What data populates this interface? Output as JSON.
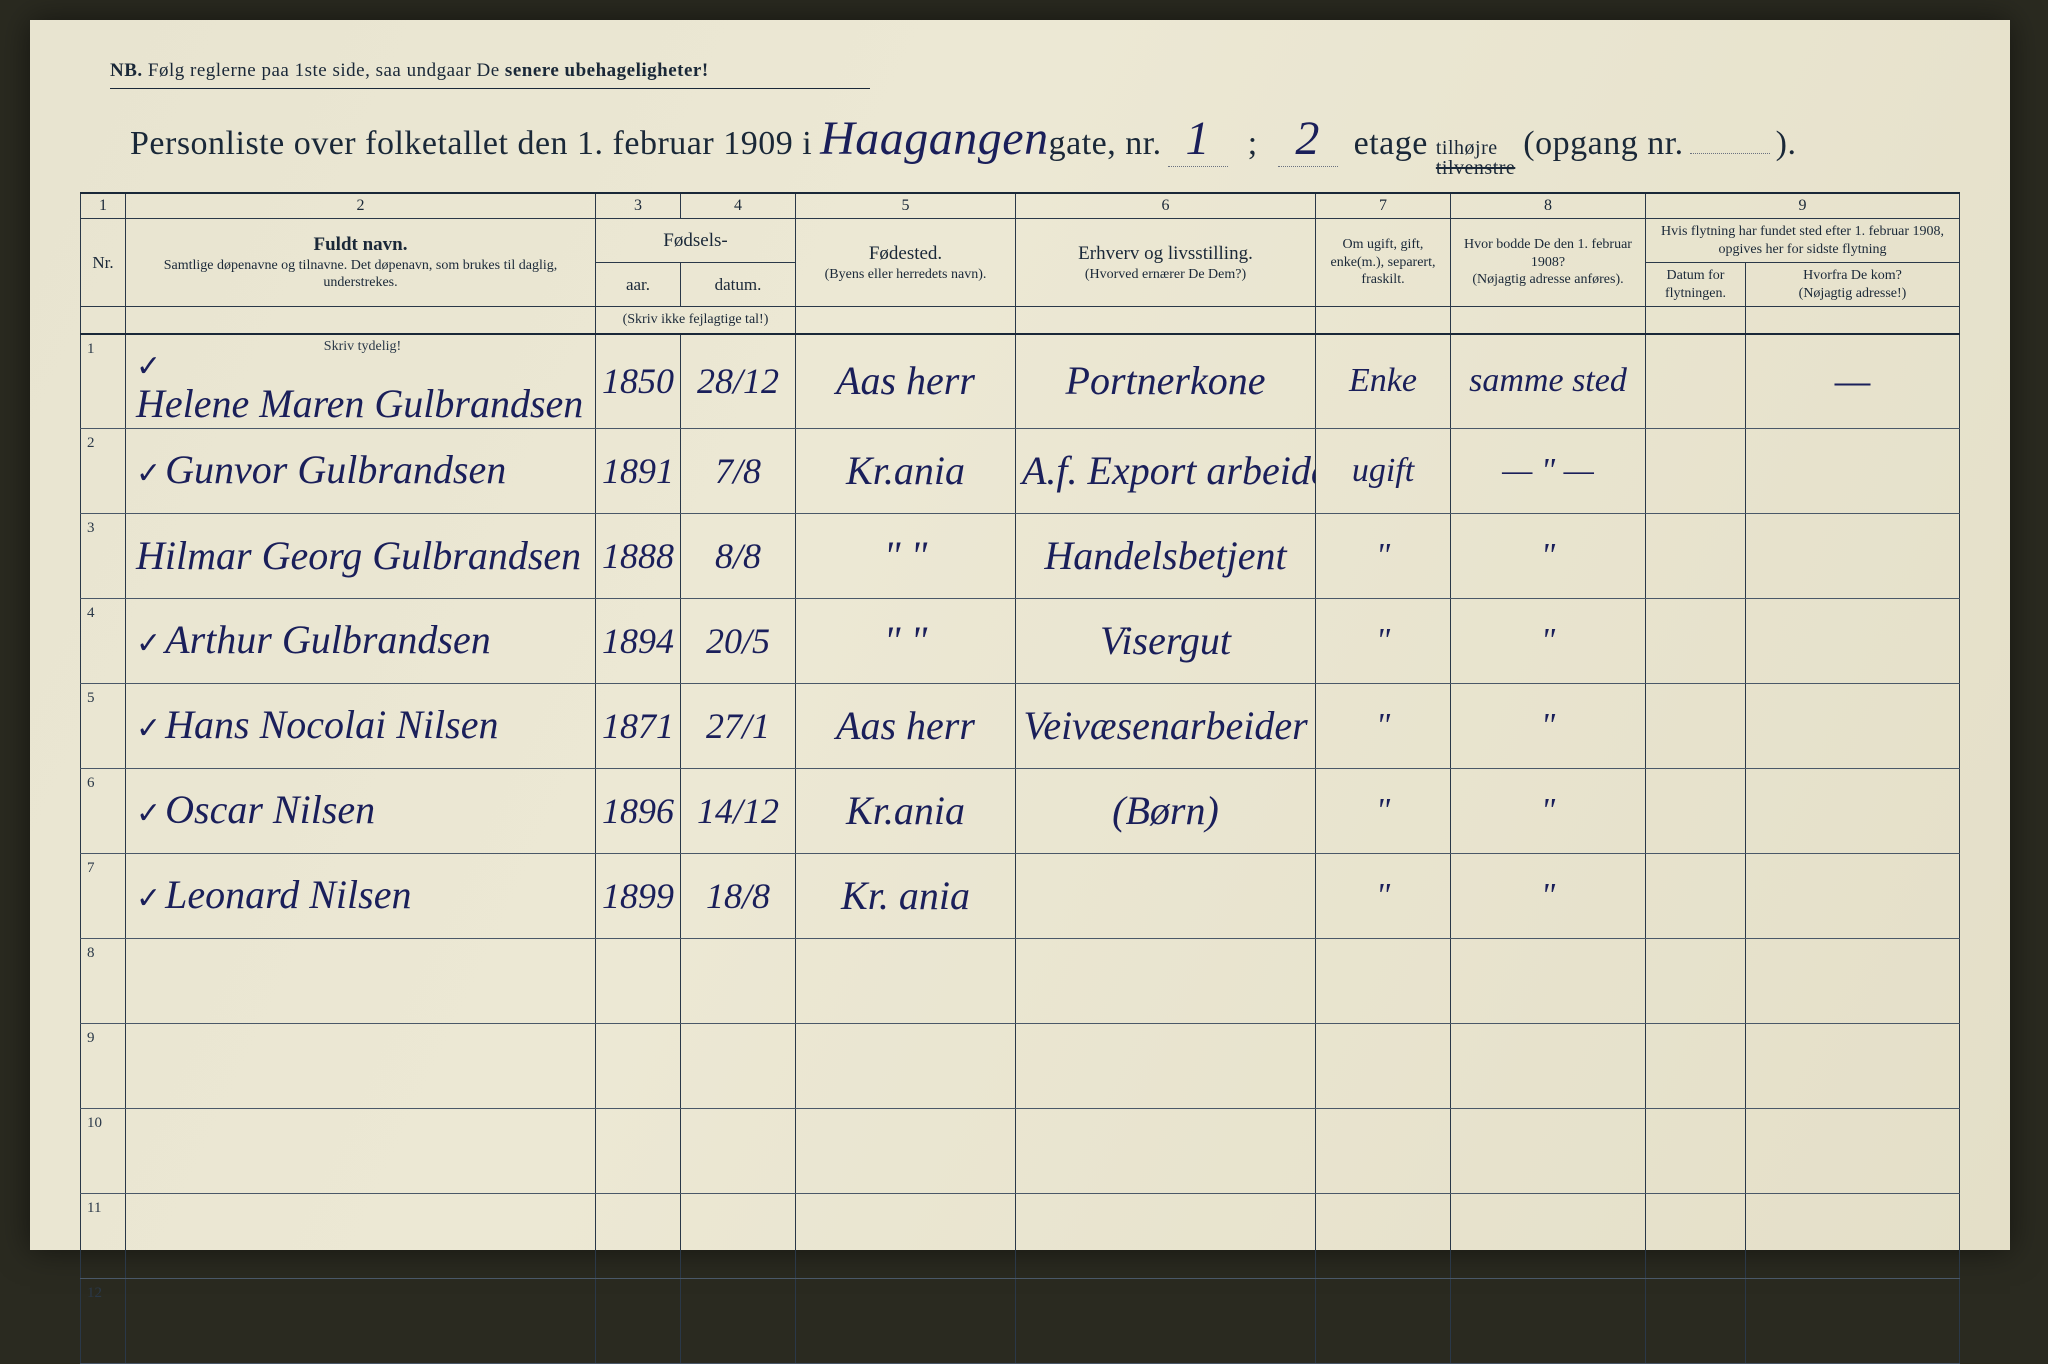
{
  "colors": {
    "paper": "#e8e4d0",
    "ink_print": "#1a2838",
    "ink_hand": "#1a1f5a",
    "rule": "#2a3848"
  },
  "nb": {
    "prefix": "NB.",
    "text_a": "Følg reglerne paa 1ste side, saa undgaar De",
    "text_b": "senere ubehageligheter!"
  },
  "title": {
    "lead": "Personliste over folketallet den 1. februar 1909 i",
    "street_hand": "Haagangen",
    "gate_label": "gate, nr.",
    "gate_nr": "1",
    "semicolon": ";",
    "etage_nr": "2",
    "etage_label": "etage",
    "tilhojre": "tilhøjre",
    "tilvenstre": "tilvenstre",
    "opgang": "(opgang nr.",
    "opgang_nr": "",
    "close": ")."
  },
  "colnums": [
    "1",
    "2",
    "3",
    "4",
    "5",
    "6",
    "7",
    "8",
    "9"
  ],
  "headers": {
    "nr": "Nr.",
    "fuldt_navn": "Fuldt navn.",
    "fuldt_sub": "Samtlige døpenavne og tilnavne. Det døpenavn, som brukes til daglig, understrekes.",
    "fodsels": "Fødsels-",
    "aar": "aar.",
    "datum": "datum.",
    "skriv_feil": "(Skriv ikke fejlagtige tal!)",
    "fodested": "Fødested.",
    "fodested_sub": "(Byens eller herredets navn).",
    "erhverv": "Erhverv og livsstilling.",
    "erhverv_sub": "(Hvorved ernærer De Dem?)",
    "ugift": "Om ugift, gift, enke(m.), separert, fraskilt.",
    "hvor1908": "Hvor bodde De den 1. februar 1908?",
    "hvor1908_sub": "(Nøjagtig adresse anføres).",
    "flytning": "Hvis flytning har fundet sted efter 1. februar 1908, opgives her for sidste flytning",
    "datum_flyt": "Datum for flytningen.",
    "hvorfra": "Hvorfra De kom?",
    "hvorfra_sub": "(Nøjagtig adresse!)",
    "skriv_tydelig": "Skriv tydelig!"
  },
  "rows": [
    {
      "nr": "1",
      "chk": "✓",
      "name": "Helene Maren Gulbrandsen",
      "year": "1850",
      "date": "28/12",
      "birthplace": "Aas herr",
      "occupation": "Portnerkone",
      "marital": "Enke",
      "addr1908": "samme sted",
      "move_date": "",
      "from": "—"
    },
    {
      "nr": "2",
      "chk": "✓",
      "name": "Gunvor Gulbrandsen",
      "year": "1891",
      "date": "7/8",
      "birthplace": "Kr.ania",
      "occupation": "A.f. Export arbeiderske",
      "marital": "ugift",
      "addr1908": "— \" —",
      "move_date": "",
      "from": ""
    },
    {
      "nr": "3",
      "chk": "",
      "name": "Hilmar Georg Gulbrandsen",
      "year": "1888",
      "date": "8/8",
      "birthplace": "\"   \"",
      "occupation": "Handelsbetjent",
      "marital": "\"",
      "addr1908": "\"",
      "move_date": "",
      "from": ""
    },
    {
      "nr": "4",
      "chk": "✓",
      "name": "Arthur Gulbrandsen",
      "year": "1894",
      "date": "20/5",
      "birthplace": "\"   \"",
      "occupation": "Visergut",
      "marital": "\"",
      "addr1908": "\"",
      "move_date": "",
      "from": ""
    },
    {
      "nr": "5",
      "chk": "✓",
      "name": "Hans Nocolai Nilsen",
      "year": "1871",
      "date": "27/1",
      "birthplace": "Aas herr",
      "occupation": "Veivæsenarbeider",
      "marital": "\"",
      "addr1908": "\"",
      "move_date": "",
      "from": ""
    },
    {
      "nr": "6",
      "chk": "✓",
      "name": "Oscar Nilsen",
      "year": "1896",
      "date": "14/12",
      "birthplace": "Kr.ania",
      "occupation": "(Børn)",
      "marital": "\"",
      "addr1908": "\"",
      "move_date": "",
      "from": ""
    },
    {
      "nr": "7",
      "chk": "✓",
      "name": "Leonard Nilsen",
      "year": "1899",
      "date": "18/8",
      "birthplace": "Kr. ania",
      "occupation": "",
      "marital": "\"",
      "addr1908": "\"",
      "move_date": "",
      "from": ""
    },
    {
      "nr": "8",
      "chk": "",
      "name": "",
      "year": "",
      "date": "",
      "birthplace": "",
      "occupation": "",
      "marital": "",
      "addr1908": "",
      "move_date": "",
      "from": ""
    },
    {
      "nr": "9",
      "chk": "",
      "name": "",
      "year": "",
      "date": "",
      "birthplace": "",
      "occupation": "",
      "marital": "",
      "addr1908": "",
      "move_date": "",
      "from": ""
    },
    {
      "nr": "10",
      "chk": "",
      "name": "",
      "year": "",
      "date": "",
      "birthplace": "",
      "occupation": "",
      "marital": "",
      "addr1908": "",
      "move_date": "",
      "from": ""
    },
    {
      "nr": "11",
      "chk": "",
      "name": "",
      "year": "",
      "date": "",
      "birthplace": "",
      "occupation": "",
      "marital": "",
      "addr1908": "",
      "move_date": "",
      "from": ""
    },
    {
      "nr": "12",
      "chk": "",
      "name": "",
      "year": "",
      "date": "",
      "birthplace": "",
      "occupation": "",
      "marital": "",
      "addr1908": "",
      "move_date": "",
      "from": ""
    }
  ]
}
